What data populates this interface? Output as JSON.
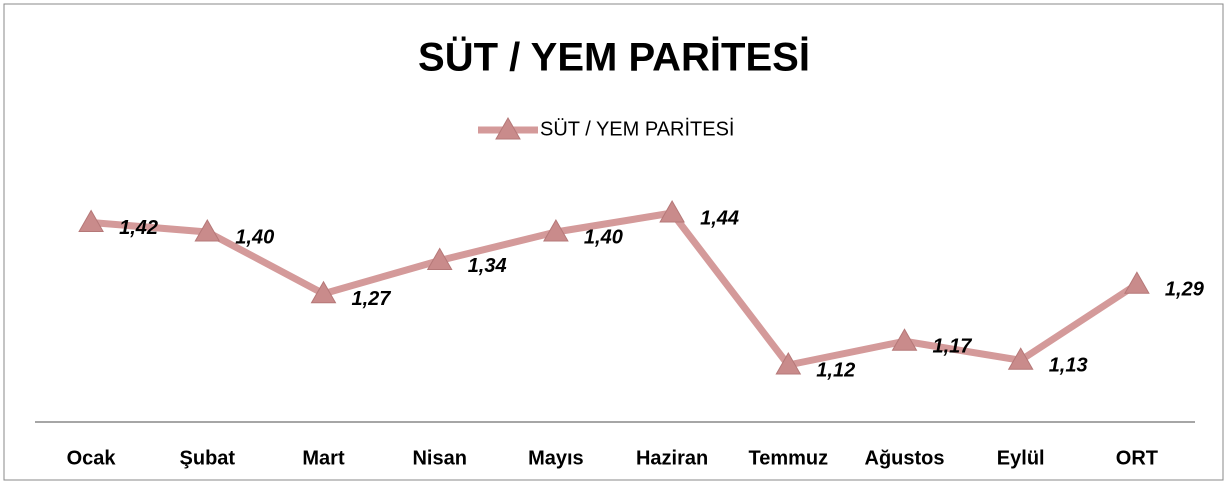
{
  "chart_data": {
    "type": "line",
    "title": "SÜT / YEM PARİTESİ",
    "categories": [
      "Ocak",
      "Şubat",
      "Mart",
      "Nisan",
      "Mayıs",
      "Haziran",
      "Temmuz",
      "Ağustos",
      "Eylül",
      "ORT"
    ],
    "series": [
      {
        "name": "SÜT / YEM PARİTESİ",
        "color": "#d49a9a",
        "values": [
          1.42,
          1.4,
          1.27,
          1.34,
          1.4,
          1.44,
          1.12,
          1.17,
          1.13,
          1.29
        ],
        "value_labels": [
          "1,42",
          "1,40",
          "1,27",
          "1,34",
          "1,40",
          "1,44",
          "1,12",
          "1,17",
          "1,13",
          "1,29"
        ]
      }
    ],
    "legend": "top"
  }
}
